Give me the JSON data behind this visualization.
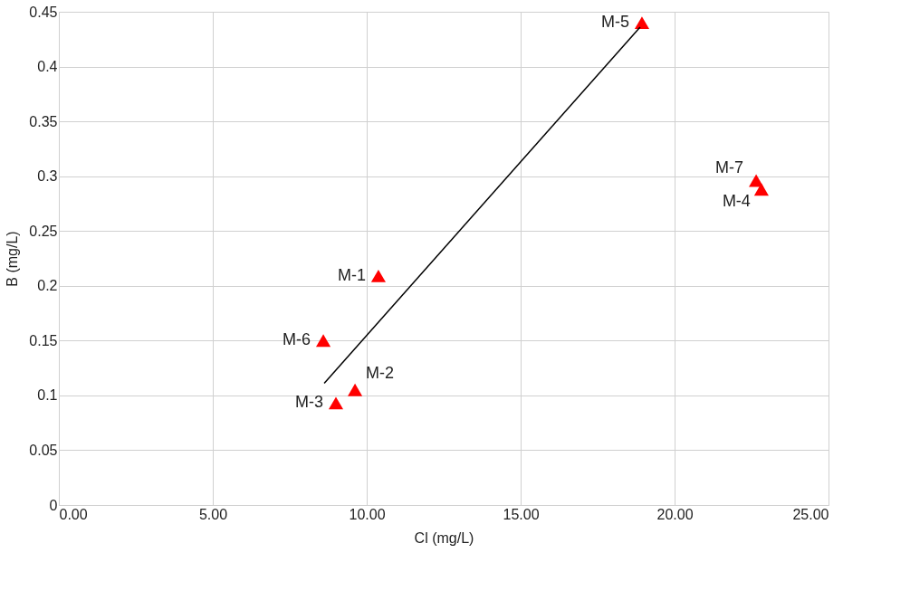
{
  "chart_data": {
    "type": "scatter",
    "xlabel": "Cl (mg/L)",
    "ylabel": "B (mg/L)",
    "xlim": [
      0,
      25
    ],
    "ylim": [
      0,
      0.45
    ],
    "xticks": [
      {
        "value": 0,
        "label": "0.00"
      },
      {
        "value": 5,
        "label": "5.00"
      },
      {
        "value": 10,
        "label": "10.00"
      },
      {
        "value": 15,
        "label": "15.00"
      },
      {
        "value": 20,
        "label": "20.00"
      },
      {
        "value": 25,
        "label": "25.00"
      }
    ],
    "yticks": [
      0,
      0.05,
      0.1,
      0.15,
      0.2,
      0.25,
      0.3,
      0.35,
      0.4,
      0.45
    ],
    "grid": true,
    "series": [
      {
        "marker": "triangle",
        "color": "#ff0000",
        "x": [
          18.94,
          22.65,
          22.82,
          10.38,
          8.59,
          9.62,
          9.0
        ],
        "values": [
          0.44,
          0.296,
          0.288,
          0.209,
          0.15,
          0.105,
          0.093
        ]
      },
      {
        "type": "line",
        "color": "#000000",
        "line_style": "solid",
        "x": [
          8.62,
          18.88
        ],
        "values": [
          0.111,
          0.436
        ]
      }
    ],
    "annotations": [
      {
        "text": "M-5",
        "x": 18.94,
        "y": 0.44
      },
      {
        "text": "M-7",
        "x": 22.65,
        "y": 0.296
      },
      {
        "text": "M-4",
        "x": 22.82,
        "y": 0.288
      },
      {
        "text": "M-1",
        "x": 10.38,
        "y": 0.209
      },
      {
        "text": "M-6",
        "x": 8.59,
        "y": 0.15
      },
      {
        "text": "M-2",
        "x": 9.62,
        "y": 0.105
      },
      {
        "text": "M-3",
        "x": 9.0,
        "y": 0.093
      }
    ]
  }
}
